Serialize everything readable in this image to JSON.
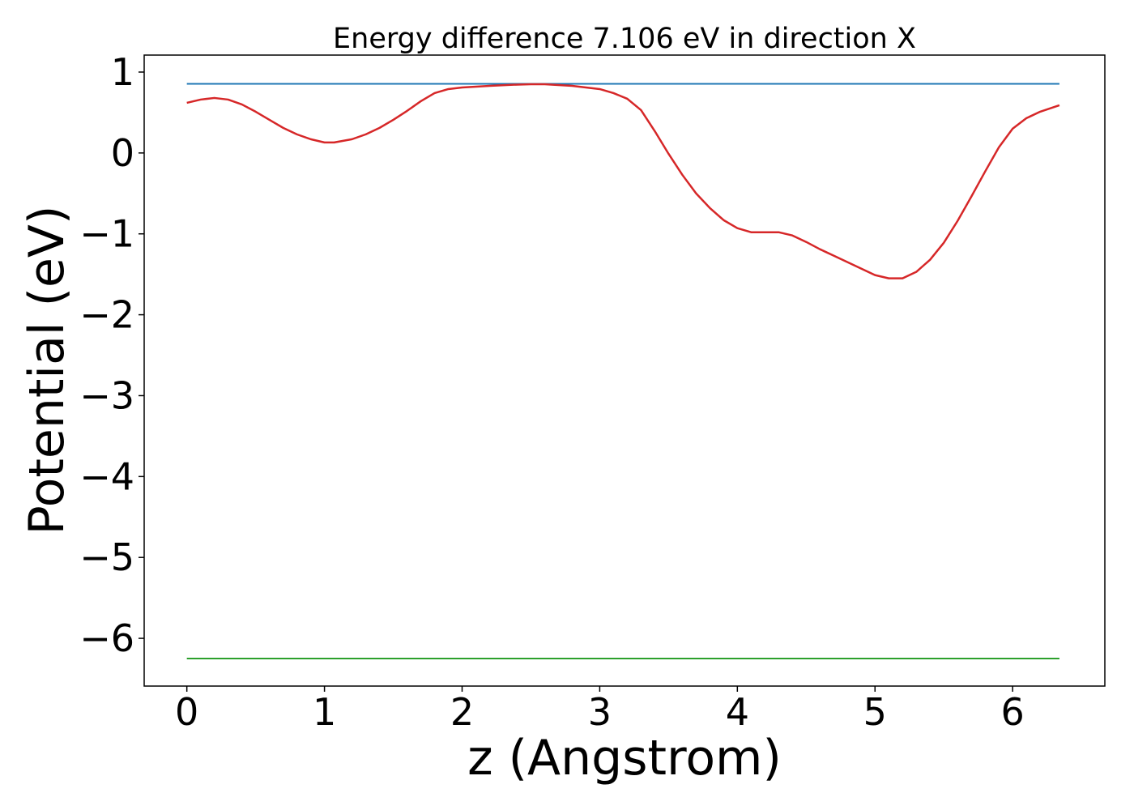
{
  "chart_data": {
    "type": "line",
    "title": "Energy difference 7.106 eV in direction X",
    "xlabel": "z (Angstrom)",
    "ylabel": "Potential (eV)",
    "xlim": [
      -0.31,
      6.67
    ],
    "ylim": [
      -6.59,
      1.21
    ],
    "xticks": [
      0,
      1,
      2,
      3,
      4,
      5,
      6
    ],
    "xtick_labels": [
      "0",
      "1",
      "2",
      "3",
      "4",
      "5",
      "6"
    ],
    "yticks": [
      1,
      0,
      -1,
      -2,
      -3,
      -4,
      -5,
      -6
    ],
    "ytick_labels": [
      "1",
      "0",
      "−1",
      "−2",
      "−3",
      "−4",
      "−5",
      "−6"
    ],
    "grid": false,
    "legend": "none",
    "series": [
      {
        "color": "#1f77b4",
        "x": [
          0,
          6.34
        ],
        "y": [
          0.855,
          0.855
        ]
      },
      {
        "color": "#2ca02c",
        "x": [
          0,
          6.34
        ],
        "y": [
          -6.25,
          -6.25
        ]
      },
      {
        "color": "#d62728",
        "x": [
          0,
          0.1,
          0.2,
          0.3,
          0.4,
          0.5,
          0.6,
          0.7,
          0.8,
          0.9,
          1.0,
          1.07,
          1.2,
          1.3,
          1.4,
          1.5,
          1.6,
          1.7,
          1.8,
          1.9,
          2.0,
          2.2,
          2.4,
          2.5,
          2.6,
          2.8,
          3.0,
          3.1,
          3.2,
          3.3,
          3.4,
          3.5,
          3.6,
          3.7,
          3.8,
          3.9,
          4.0,
          4.1,
          4.2,
          4.3,
          4.4,
          4.5,
          4.6,
          4.7,
          4.8,
          4.9,
          5.0,
          5.1,
          5.2,
          5.3,
          5.4,
          5.5,
          5.6,
          5.7,
          5.8,
          5.9,
          6.0,
          6.1,
          6.2,
          6.34
        ],
        "y": [
          0.62,
          0.66,
          0.68,
          0.66,
          0.6,
          0.51,
          0.41,
          0.31,
          0.23,
          0.17,
          0.13,
          0.13,
          0.17,
          0.23,
          0.31,
          0.41,
          0.52,
          0.64,
          0.74,
          0.79,
          0.81,
          0.83,
          0.845,
          0.85,
          0.85,
          0.83,
          0.79,
          0.74,
          0.67,
          0.53,
          0.27,
          -0.01,
          -0.27,
          -0.5,
          -0.68,
          -0.83,
          -0.93,
          -0.98,
          -0.98,
          -0.98,
          -1.02,
          -1.1,
          -1.19,
          -1.27,
          -1.35,
          -1.43,
          -1.51,
          -1.55,
          -1.55,
          -1.47,
          -1.32,
          -1.11,
          -0.84,
          -0.54,
          -0.23,
          0.07,
          0.3,
          0.43,
          0.51,
          0.59
        ]
      }
    ]
  }
}
